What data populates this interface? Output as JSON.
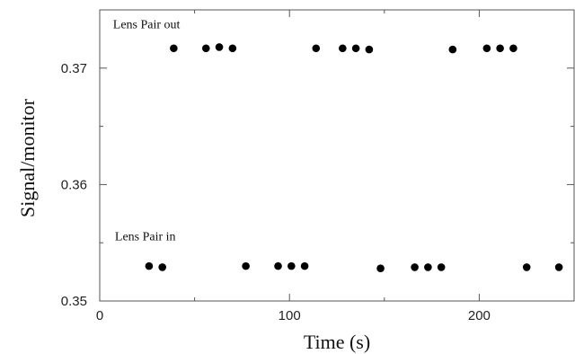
{
  "chart_data": {
    "type": "scatter",
    "title": "",
    "xlabel": "Time (s)",
    "ylabel": "Signal/monitor",
    "xlim": [
      0,
      250
    ],
    "ylim": [
      0.35,
      0.375
    ],
    "xticks": [
      0,
      100,
      200
    ],
    "xtick_labels": [
      "0",
      "100",
      "200"
    ],
    "yticks": [
      0.35,
      0.36,
      0.37
    ],
    "ytick_labels": [
      "0.35",
      "0.36",
      "0.37"
    ],
    "grid": false,
    "legend": "none",
    "marker_color": "#000000",
    "annotations": [
      {
        "id": "out",
        "text": "Lens Pair out",
        "x": 7,
        "y": 0.3734
      },
      {
        "id": "in",
        "text": "Lens Pair in",
        "x": 8,
        "y": 0.3552
      }
    ],
    "series": [
      {
        "points": [
          {
            "x": 39,
            "y": 0.3717
          },
          {
            "x": 56,
            "y": 0.3717
          },
          {
            "x": 63,
            "y": 0.3718
          },
          {
            "x": 70,
            "y": 0.3717
          },
          {
            "x": 114,
            "y": 0.3717
          },
          {
            "x": 128,
            "y": 0.3717
          },
          {
            "x": 135,
            "y": 0.3717
          },
          {
            "x": 142,
            "y": 0.3716
          },
          {
            "x": 186,
            "y": 0.3716
          },
          {
            "x": 204,
            "y": 0.3717
          },
          {
            "x": 211,
            "y": 0.3717
          },
          {
            "x": 218,
            "y": 0.3717
          },
          {
            "x": 26,
            "y": 0.353
          },
          {
            "x": 33,
            "y": 0.3529
          },
          {
            "x": 77,
            "y": 0.353
          },
          {
            "x": 94,
            "y": 0.353
          },
          {
            "x": 101,
            "y": 0.353
          },
          {
            "x": 108,
            "y": 0.353
          },
          {
            "x": 148,
            "y": 0.3528
          },
          {
            "x": 166,
            "y": 0.3529
          },
          {
            "x": 173,
            "y": 0.3529
          },
          {
            "x": 180,
            "y": 0.3529
          },
          {
            "x": 225,
            "y": 0.3529
          },
          {
            "x": 242,
            "y": 0.3529
          }
        ]
      }
    ]
  }
}
